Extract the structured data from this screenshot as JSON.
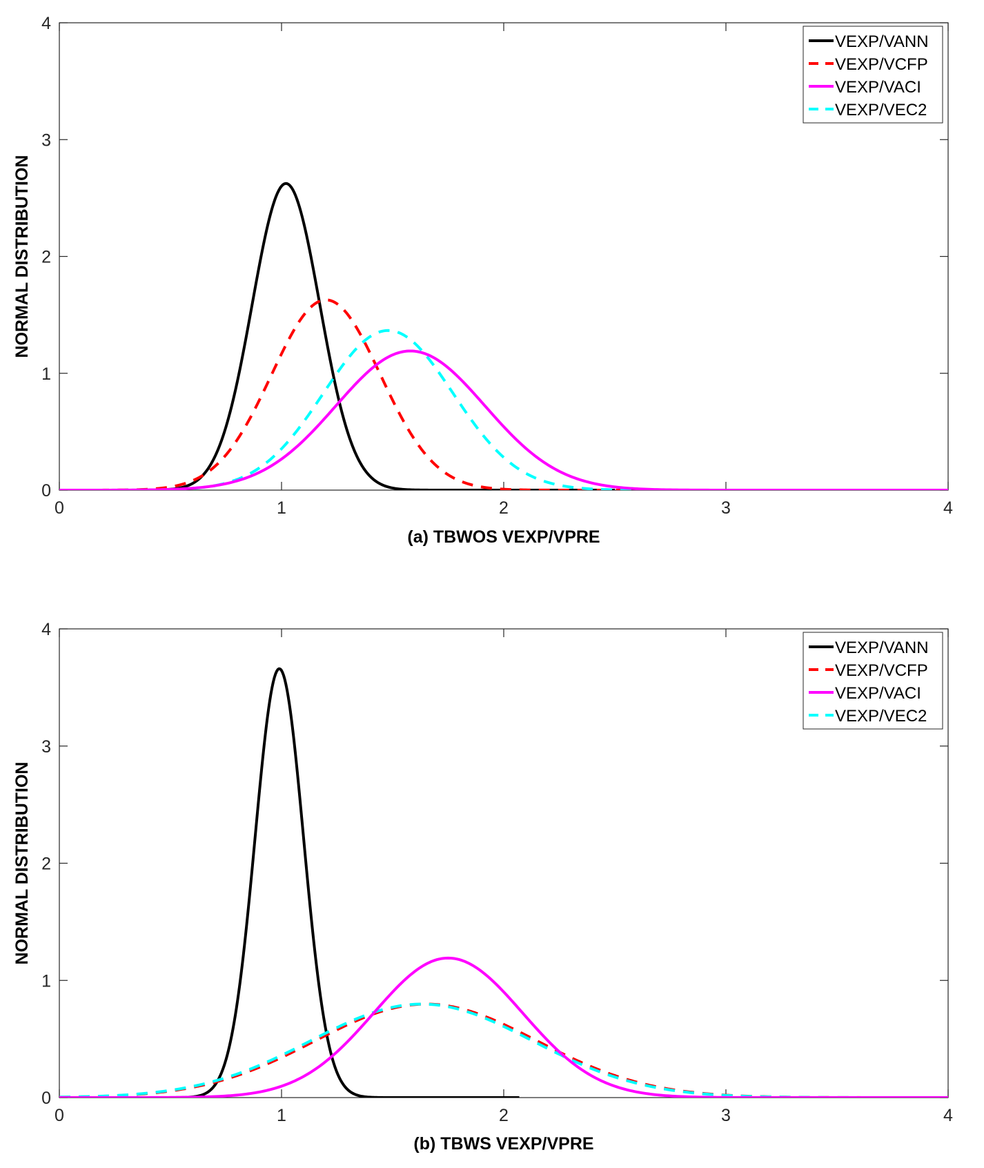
{
  "chart_data": [
    {
      "type": "line",
      "panel": "a",
      "title": "",
      "xlabel": "(a) TBWOS VEXP/VPRE",
      "ylabel": "NORMAL DISTRIBUTION",
      "xlim": [
        0,
        4
      ],
      "ylim": [
        0,
        4
      ],
      "x_ticks": [
        0,
        1,
        2,
        3,
        4
      ],
      "y_ticks": [
        0,
        1,
        2,
        3,
        4
      ],
      "grid": false,
      "legend_position": "top-right",
      "series": [
        {
          "name": "VEXP/VANN",
          "color": "#000000",
          "dash": "solid",
          "mean": 1.02,
          "std": 0.152,
          "x_range": [
            0,
            2.5
          ]
        },
        {
          "name": "VEXP/VCFP",
          "color": "#ff0000",
          "dash": "dashed",
          "mean": 1.2,
          "std": 0.245,
          "x_range": [
            0,
            4
          ]
        },
        {
          "name": "VEXP/VACI",
          "color": "#ff00ff",
          "dash": "solid",
          "mean": 1.58,
          "std": 0.335,
          "x_range": [
            0,
            4
          ]
        },
        {
          "name": "VEXP/VEC2",
          "color": "#00ffff",
          "dash": "dashed",
          "mean": 1.48,
          "std": 0.292,
          "x_range": [
            0,
            4
          ]
        }
      ]
    },
    {
      "type": "line",
      "panel": "b",
      "title": "",
      "xlabel": "(b) TBWS VEXP/VPRE",
      "ylabel": "NORMAL DISTRIBUTION",
      "xlim": [
        0,
        4
      ],
      "ylim": [
        0,
        4
      ],
      "x_ticks": [
        0,
        1,
        2,
        3,
        4
      ],
      "y_ticks": [
        0,
        1,
        2,
        3,
        4
      ],
      "grid": false,
      "legend_position": "top-right",
      "series": [
        {
          "name": "VEXP/VANN",
          "color": "#000000",
          "dash": "solid",
          "mean": 0.99,
          "std": 0.109,
          "x_range": [
            0,
            2.07
          ]
        },
        {
          "name": "VEXP/VCFP",
          "color": "#ff0000",
          "dash": "dashed",
          "mean": 1.65,
          "std": 0.5,
          "x_range": [
            0,
            4
          ]
        },
        {
          "name": "VEXP/VACI",
          "color": "#ff00ff",
          "dash": "solid",
          "mean": 1.75,
          "std": 0.335,
          "x_range": [
            0,
            4
          ]
        },
        {
          "name": "VEXP/VEC2",
          "color": "#00ffff",
          "dash": "dashed",
          "mean": 1.63,
          "std": 0.5,
          "x_range": [
            0,
            4
          ]
        }
      ]
    }
  ]
}
